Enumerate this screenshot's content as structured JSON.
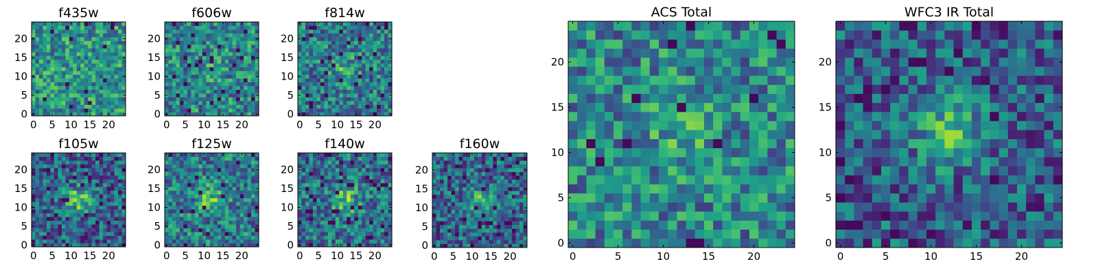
{
  "chart_data": [
    {
      "type": "heatmap",
      "title": "f435w",
      "xticks": [
        "0",
        "5",
        "10",
        "15",
        "20"
      ],
      "yticks": [
        "0",
        "5",
        "10",
        "15",
        "20"
      ],
      "xlim": [
        0,
        25
      ],
      "ylim": [
        0,
        25
      ],
      "grid_size": 25,
      "colormap": "viridis",
      "source": {
        "kind": "noise",
        "seed": 11,
        "blob": 0.0,
        "dark": 0.03,
        "bias": 0.72
      },
      "grid": false
    },
    {
      "type": "heatmap",
      "title": "f606w",
      "xticks": [
        "0",
        "5",
        "10",
        "15",
        "20"
      ],
      "yticks": [
        "0",
        "5",
        "10",
        "15",
        "20"
      ],
      "xlim": [
        0,
        25
      ],
      "ylim": [
        0,
        25
      ],
      "grid_size": 25,
      "colormap": "viridis",
      "source": {
        "kind": "noise",
        "seed": 23,
        "blob": 0.15,
        "dark": 0.04,
        "bias": 0.66
      },
      "grid": false
    },
    {
      "type": "heatmap",
      "title": "f814w",
      "xticks": [
        "0",
        "5",
        "10",
        "15",
        "20"
      ],
      "yticks": [
        "0",
        "5",
        "10",
        "15",
        "20"
      ],
      "xlim": [
        0,
        25
      ],
      "ylim": [
        0,
        25
      ],
      "grid_size": 25,
      "colormap": "viridis",
      "source": {
        "kind": "noise",
        "seed": 37,
        "blob": 0.35,
        "dark": 0.05,
        "bias": 0.6
      },
      "grid": false
    },
    {
      "type": "heatmap",
      "title": "f105w",
      "xticks": [
        "0",
        "5",
        "10",
        "15",
        "20"
      ],
      "yticks": [
        "0",
        "5",
        "10",
        "15",
        "20"
      ],
      "xlim": [
        0,
        25
      ],
      "ylim": [
        0,
        25
      ],
      "grid_size": 25,
      "colormap": "viridis",
      "source": {
        "kind": "noise",
        "seed": 41,
        "blob": 0.75,
        "dark": 0.04,
        "bias": 0.45
      },
      "grid": false
    },
    {
      "type": "heatmap",
      "title": "f125w",
      "xticks": [
        "0",
        "5",
        "10",
        "15",
        "20"
      ],
      "yticks": [
        "0",
        "5",
        "10",
        "15",
        "20"
      ],
      "xlim": [
        0,
        25
      ],
      "ylim": [
        0,
        25
      ],
      "grid_size": 25,
      "colormap": "viridis",
      "source": {
        "kind": "noise",
        "seed": 53,
        "blob": 0.55,
        "dark": 0.04,
        "bias": 0.6
      },
      "grid": false
    },
    {
      "type": "heatmap",
      "title": "f140w",
      "xticks": [
        "0",
        "5",
        "10",
        "15",
        "20"
      ],
      "yticks": [
        "0",
        "5",
        "10",
        "15",
        "20"
      ],
      "xlim": [
        0,
        25
      ],
      "ylim": [
        0,
        25
      ],
      "grid_size": 25,
      "colormap": "viridis",
      "source": {
        "kind": "noise",
        "seed": 67,
        "blob": 0.6,
        "dark": 0.05,
        "bias": 0.55
      },
      "grid": false
    },
    {
      "type": "heatmap",
      "title": "f160w",
      "xticks": [
        "0",
        "5",
        "10",
        "15",
        "20"
      ],
      "yticks": [
        "0",
        "5",
        "10",
        "15",
        "20"
      ],
      "xlim": [
        0,
        25
      ],
      "ylim": [
        0,
        25
      ],
      "grid_size": 25,
      "colormap": "viridis",
      "source": {
        "kind": "noise",
        "seed": 79,
        "blob": 0.6,
        "dark": 0.06,
        "bias": 0.48
      },
      "grid": false
    },
    {
      "type": "heatmap",
      "title": "ACS Total",
      "xticks": [
        "0",
        "5",
        "10",
        "15",
        "20"
      ],
      "yticks": [
        "0",
        "5",
        "10",
        "15",
        "20"
      ],
      "xlim": [
        0,
        25
      ],
      "ylim": [
        0,
        25
      ],
      "grid_size": 25,
      "colormap": "viridis",
      "source": {
        "kind": "noise",
        "seed": 97,
        "blob": 0.3,
        "dark": 0.03,
        "bias": 0.65
      },
      "grid": false
    },
    {
      "type": "heatmap",
      "title": "WFC3 IR Total",
      "xticks": [
        "0",
        "5",
        "10",
        "15",
        "20"
      ],
      "yticks": [
        "0",
        "5",
        "10",
        "15",
        "20"
      ],
      "xlim": [
        0,
        25
      ],
      "ylim": [
        0,
        25
      ],
      "grid_size": 25,
      "colormap": "viridis",
      "source": {
        "kind": "noise",
        "seed": 113,
        "blob": 0.9,
        "dark": 0.02,
        "bias": 0.42
      },
      "grid": false
    }
  ]
}
